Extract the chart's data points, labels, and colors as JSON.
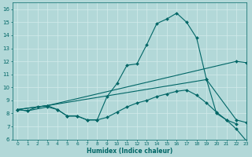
{
  "title": "",
  "xlabel": "Humidex (Indice chaleur)",
  "bg_color": "#b2d8d8",
  "grid_color": "#d4ecec",
  "line_color": "#006666",
  "xlim": [
    -0.5,
    23
  ],
  "ylim": [
    6,
    16.5
  ],
  "xticks": [
    0,
    1,
    2,
    3,
    4,
    5,
    6,
    7,
    8,
    9,
    10,
    11,
    12,
    13,
    14,
    15,
    16,
    17,
    18,
    19,
    20,
    21,
    22,
    23
  ],
  "yticks": [
    6,
    7,
    8,
    9,
    10,
    11,
    12,
    13,
    14,
    15,
    16
  ],
  "curve_x": [
    0,
    1,
    2,
    3,
    4,
    5,
    6,
    7,
    8,
    9,
    10,
    11,
    12,
    13,
    14,
    15,
    16,
    17,
    18,
    19,
    20,
    21,
    22
  ],
  "curve_y": [
    8.3,
    8.2,
    8.5,
    8.6,
    8.3,
    7.8,
    7.8,
    7.5,
    7.5,
    9.3,
    10.3,
    11.7,
    11.8,
    13.3,
    14.9,
    15.25,
    15.7,
    15.0,
    13.8,
    10.6,
    8.0,
    7.5,
    7.2
  ],
  "line1_x": [
    0,
    3,
    22,
    23
  ],
  "line1_y": [
    8.3,
    8.6,
    12.0,
    11.9
  ],
  "line2_x": [
    0,
    3,
    19,
    22,
    23
  ],
  "line2_y": [
    8.3,
    8.6,
    10.6,
    7.5,
    7.3
  ],
  "bottom_x": [
    0,
    1,
    3,
    4,
    5,
    6,
    7,
    8,
    9,
    10,
    11,
    12,
    13,
    14,
    15,
    16,
    17,
    18,
    19,
    20,
    21,
    22,
    23
  ],
  "bottom_y": [
    8.3,
    8.2,
    8.5,
    8.3,
    7.8,
    7.8,
    7.5,
    7.5,
    7.7,
    8.1,
    8.5,
    8.8,
    9.0,
    9.3,
    9.5,
    9.7,
    9.8,
    9.4,
    8.8,
    8.1,
    7.5,
    6.8,
    5.9
  ]
}
